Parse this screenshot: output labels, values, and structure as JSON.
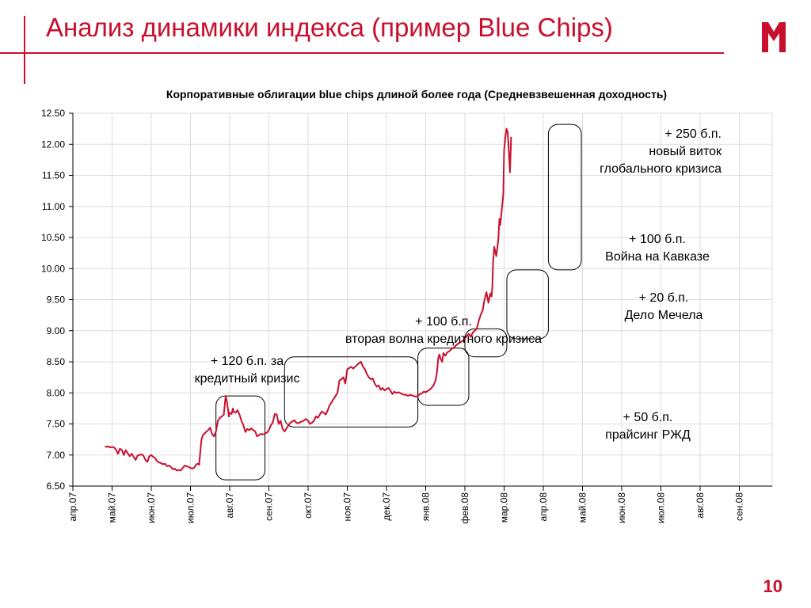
{
  "slide": {
    "title": "Анализ динамики индекса (пример Blue Chips)",
    "page_number": "10",
    "accent_color": "#c8102e"
  },
  "chart_data": {
    "type": "line",
    "title": "Корпоративные облигации blue chips длиной более года (Средневзвешенная доходность)",
    "xlabel": "",
    "ylabel": "",
    "ylim": [
      6.5,
      12.5
    ],
    "yticks": [
      "12.50",
      "12.00",
      "11.50",
      "11.00",
      "10.50",
      "10.00",
      "9.50",
      "9.00",
      "8.50",
      "8.00",
      "7.50",
      "7.00",
      "6.50"
    ],
    "x_categories": [
      "апр.07",
      "май.07",
      "июн.07",
      "июл.07",
      "авг.07",
      "сен.07",
      "окт.07",
      "ноя.07",
      "дек.07",
      "янв.08",
      "фев.08",
      "мар.08",
      "апр.08",
      "май.08",
      "июн.08",
      "июл.08",
      "авг.08",
      "сен.08"
    ],
    "grid": true,
    "series": [
      {
        "color": "#c8102e",
        "points": [
          [
            0.82,
            7.14
          ],
          [
            0.86,
            7.13
          ],
          [
            0.9,
            7.14
          ],
          [
            0.95,
            7.12
          ],
          [
            1.0,
            7.13
          ],
          [
            1.05,
            7.12
          ],
          [
            1.1,
            7.09
          ],
          [
            1.15,
            7.02
          ],
          [
            1.2,
            7.1
          ],
          [
            1.25,
            7.08
          ],
          [
            1.3,
            7.0
          ],
          [
            1.35,
            7.08
          ],
          [
            1.4,
            7.03
          ],
          [
            1.45,
            6.98
          ],
          [
            1.5,
            7.02
          ],
          [
            1.55,
            6.97
          ],
          [
            1.6,
            6.92
          ],
          [
            1.65,
            6.99
          ],
          [
            1.7,
            7.0
          ],
          [
            1.75,
            7.01
          ],
          [
            1.8,
            6.99
          ],
          [
            1.85,
            6.92
          ],
          [
            1.9,
            6.89
          ],
          [
            1.95,
            6.98
          ],
          [
            2.0,
            7.0
          ],
          [
            2.05,
            6.97
          ],
          [
            2.1,
            6.95
          ],
          [
            2.15,
            6.9
          ],
          [
            2.2,
            6.88
          ],
          [
            2.25,
            6.87
          ],
          [
            2.3,
            6.85
          ],
          [
            2.35,
            6.86
          ],
          [
            2.4,
            6.82
          ],
          [
            2.45,
            6.83
          ],
          [
            2.5,
            6.81
          ],
          [
            2.55,
            6.77
          ],
          [
            2.6,
            6.78
          ],
          [
            2.65,
            6.75
          ],
          [
            2.7,
            6.76
          ],
          [
            2.75,
            6.75
          ],
          [
            2.8,
            6.79
          ],
          [
            2.85,
            6.83
          ],
          [
            2.9,
            6.82
          ],
          [
            2.95,
            6.81
          ],
          [
            3.0,
            6.79
          ],
          [
            3.05,
            6.78
          ],
          [
            3.1,
            6.8
          ],
          [
            3.15,
            6.85
          ],
          [
            3.2,
            6.86
          ],
          [
            3.22,
            6.84
          ],
          [
            3.25,
            7.05
          ],
          [
            3.28,
            7.25
          ],
          [
            3.32,
            7.32
          ],
          [
            3.38,
            7.36
          ],
          [
            3.45,
            7.4
          ],
          [
            3.5,
            7.44
          ],
          [
            3.55,
            7.34
          ],
          [
            3.6,
            7.3
          ],
          [
            3.65,
            7.38
          ],
          [
            3.7,
            7.55
          ],
          [
            3.75,
            7.6
          ],
          [
            3.8,
            7.62
          ],
          [
            3.85,
            7.65
          ],
          [
            3.88,
            7.85
          ],
          [
            3.9,
            7.95
          ],
          [
            3.93,
            7.86
          ],
          [
            3.96,
            7.72
          ],
          [
            3.98,
            7.62
          ],
          [
            4.0,
            7.68
          ],
          [
            4.05,
            7.66
          ],
          [
            4.08,
            7.75
          ],
          [
            4.1,
            7.7
          ],
          [
            4.15,
            7.68
          ],
          [
            4.2,
            7.72
          ],
          [
            4.25,
            7.65
          ],
          [
            4.3,
            7.55
          ],
          [
            4.35,
            7.48
          ],
          [
            4.4,
            7.37
          ],
          [
            4.45,
            7.42
          ],
          [
            4.5,
            7.4
          ],
          [
            4.55,
            7.43
          ],
          [
            4.6,
            7.4
          ],
          [
            4.65,
            7.38
          ],
          [
            4.7,
            7.3
          ],
          [
            4.75,
            7.32
          ],
          [
            4.8,
            7.34
          ],
          [
            4.85,
            7.33
          ],
          [
            4.9,
            7.35
          ],
          [
            4.95,
            7.36
          ],
          [
            5.0,
            7.4
          ],
          [
            5.05,
            7.48
          ],
          [
            5.1,
            7.52
          ],
          [
            5.15,
            7.66
          ],
          [
            5.2,
            7.65
          ],
          [
            5.25,
            7.5
          ],
          [
            5.3,
            7.55
          ],
          [
            5.35,
            7.42
          ],
          [
            5.4,
            7.38
          ],
          [
            5.45,
            7.43
          ],
          [
            5.5,
            7.48
          ],
          [
            5.55,
            7.52
          ],
          [
            5.6,
            7.54
          ],
          [
            5.65,
            7.56
          ],
          [
            5.7,
            7.52
          ],
          [
            5.75,
            7.51
          ],
          [
            5.8,
            7.53
          ],
          [
            5.85,
            7.54
          ],
          [
            5.9,
            7.56
          ],
          [
            5.95,
            7.58
          ],
          [
            6.0,
            7.55
          ],
          [
            6.05,
            7.5
          ],
          [
            6.1,
            7.52
          ],
          [
            6.15,
            7.55
          ],
          [
            6.2,
            7.62
          ],
          [
            6.25,
            7.6
          ],
          [
            6.3,
            7.65
          ],
          [
            6.35,
            7.7
          ],
          [
            6.4,
            7.68
          ],
          [
            6.45,
            7.65
          ],
          [
            6.5,
            7.72
          ],
          [
            6.55,
            7.8
          ],
          [
            6.6,
            7.85
          ],
          [
            6.65,
            7.9
          ],
          [
            6.7,
            7.95
          ],
          [
            6.75,
            8.0
          ],
          [
            6.8,
            8.2
          ],
          [
            6.85,
            8.22
          ],
          [
            6.9,
            8.25
          ],
          [
            6.95,
            8.15
          ],
          [
            7.0,
            8.38
          ],
          [
            7.05,
            8.4
          ],
          [
            7.1,
            8.42
          ],
          [
            7.15,
            8.39
          ],
          [
            7.2,
            8.42
          ],
          [
            7.25,
            8.45
          ],
          [
            7.3,
            8.48
          ],
          [
            7.35,
            8.5
          ],
          [
            7.4,
            8.42
          ],
          [
            7.45,
            8.38
          ],
          [
            7.5,
            8.3
          ],
          [
            7.55,
            8.25
          ],
          [
            7.6,
            8.22
          ],
          [
            7.65,
            8.23
          ],
          [
            7.7,
            8.15
          ],
          [
            7.75,
            8.1
          ],
          [
            7.8,
            8.12
          ],
          [
            7.85,
            8.05
          ],
          [
            7.9,
            8.08
          ],
          [
            7.95,
            8.04
          ],
          [
            8.0,
            8.06
          ],
          [
            8.05,
            8.08
          ],
          [
            8.1,
            8.04
          ],
          [
            8.15,
            7.98
          ],
          [
            8.2,
            8.02
          ],
          [
            8.25,
            8.0
          ],
          [
            8.3,
            8.01
          ],
          [
            8.35,
            8.0
          ],
          [
            8.4,
            7.98
          ],
          [
            8.45,
            7.97
          ],
          [
            8.5,
            7.97
          ],
          [
            8.55,
            7.95
          ],
          [
            8.6,
            7.97
          ],
          [
            8.65,
            7.96
          ],
          [
            8.7,
            7.95
          ],
          [
            8.75,
            7.94
          ],
          [
            8.8,
            7.95
          ],
          [
            8.85,
            7.98
          ],
          [
            8.9,
            7.99
          ],
          [
            8.95,
            8.02
          ],
          [
            9.0,
            8.01
          ],
          [
            9.05,
            8.03
          ],
          [
            9.1,
            8.05
          ],
          [
            9.15,
            8.08
          ],
          [
            9.2,
            8.12
          ],
          [
            9.25,
            8.2
          ],
          [
            9.28,
            8.3
          ],
          [
            9.32,
            8.55
          ],
          [
            9.35,
            8.62
          ],
          [
            9.38,
            8.55
          ],
          [
            9.42,
            8.5
          ],
          [
            9.45,
            8.64
          ],
          [
            9.5,
            8.6
          ],
          [
            9.55,
            8.65
          ],
          [
            9.6,
            8.67
          ],
          [
            9.65,
            8.7
          ],
          [
            9.7,
            8.72
          ],
          [
            9.75,
            8.75
          ],
          [
            9.8,
            8.78
          ],
          [
            9.85,
            8.8
          ],
          [
            9.9,
            8.82
          ],
          [
            9.95,
            8.84
          ],
          [
            10.0,
            8.87
          ],
          [
            10.05,
            8.92
          ],
          [
            10.1,
            8.95
          ],
          [
            10.15,
            8.9
          ],
          [
            10.2,
            8.97
          ],
          [
            10.25,
            9.0
          ],
          [
            10.3,
            9.03
          ],
          [
            10.35,
            9.15
          ],
          [
            10.4,
            9.25
          ],
          [
            10.45,
            9.32
          ],
          [
            10.5,
            9.5
          ],
          [
            10.55,
            9.62
          ],
          [
            10.6,
            9.45
          ],
          [
            10.62,
            9.52
          ],
          [
            10.65,
            9.6
          ],
          [
            10.68,
            9.55
          ],
          [
            10.7,
            9.7
          ],
          [
            10.72,
            10.1
          ],
          [
            10.75,
            10.35
          ],
          [
            10.8,
            10.2
          ],
          [
            10.85,
            10.45
          ],
          [
            10.88,
            10.8
          ],
          [
            10.9,
            10.7
          ],
          [
            10.95,
            11.0
          ],
          [
            10.98,
            11.2
          ],
          [
            11.0,
            11.9
          ],
          [
            11.03,
            12.1
          ],
          [
            11.06,
            12.25
          ],
          [
            11.09,
            12.2
          ],
          [
            11.12,
            11.9
          ],
          [
            11.15,
            11.55
          ],
          [
            11.18,
            12.12
          ]
        ]
      }
    ],
    "annotations": [
      {
        "lines": [
          "+ 120 б.п. за",
          "кредитный кризис"
        ]
      },
      {
        "lines": [
          "+ 100 б.п.",
          "вторая волна кредитного кризиса"
        ]
      },
      {
        "lines": [
          "+ 50 б.п.",
          "прайсинг РЖД"
        ]
      },
      {
        "lines": [
          "+ 20 б.п.",
          "Дело Мечела"
        ]
      },
      {
        "lines": [
          "+ 100 б.п.",
          "Война на Кавказе"
        ]
      },
      {
        "lines": [
          "+ 250 б.п.",
          "новый виток",
          "глобального кризиса"
        ]
      }
    ],
    "highlight_boxes": [
      {
        "x_from": 3.65,
        "x_to": 4.9,
        "y_from": 6.6,
        "y_to": 7.95
      },
      {
        "x_from": 5.4,
        "x_to": 8.8,
        "y_from": 7.45,
        "y_to": 8.58
      },
      {
        "x_from": 8.8,
        "x_to": 10.1,
        "y_from": 7.8,
        "y_to": 8.72
      },
      {
        "x_from": 10.0,
        "x_to": 11.07,
        "y_from": 8.58,
        "y_to": 9.03
      },
      {
        "x_from": 11.07,
        "x_to": 12.13,
        "y_from": 8.87,
        "y_to": 9.98
      },
      {
        "x_from": 12.13,
        "x_to": 12.97,
        "y_from": 9.98,
        "y_to": 12.32
      }
    ]
  }
}
